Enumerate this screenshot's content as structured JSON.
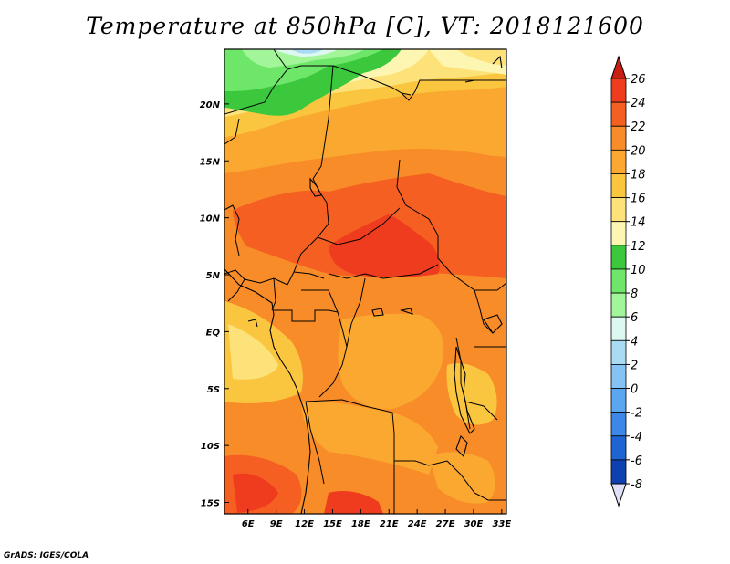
{
  "title": "Temperature at 850hPa [C], VT: 2018121600",
  "credit": "GrADS: IGES/COLA",
  "map": {
    "lon_range": [
      3.5,
      33.5
    ],
    "lat_range": [
      -16,
      24.8
    ],
    "lon_ticks": [
      6,
      9,
      12,
      15,
      18,
      21,
      24,
      27,
      30,
      33
    ],
    "lon_tick_labels": [
      "6E",
      "9E",
      "12E",
      "15E",
      "18E",
      "21E",
      "24E",
      "27E",
      "30E",
      "33E"
    ],
    "lat_ticks": [
      20,
      15,
      10,
      5,
      0,
      -5,
      -10,
      -15
    ],
    "lat_tick_labels": [
      "20N",
      "15N",
      "10N",
      "5N",
      "EQ",
      "5S",
      "10S",
      "15S"
    ],
    "variable": "Temperature at 850hPa",
    "units": "C"
  },
  "colorbar": {
    "levels": [
      "26",
      "24",
      "22",
      "20",
      "18",
      "16",
      "14",
      "12",
      "10",
      "8",
      "6",
      "4",
      "2",
      "0",
      "-2",
      "-4",
      "-6",
      "-8"
    ],
    "colors": [
      "#f03c1e",
      "#f56022",
      "#f78c28",
      "#fba830",
      "#fbc63f",
      "#fde27a",
      "#fdf6b2",
      "#3cc83c",
      "#6ee66a",
      "#a3f59a",
      "#dcf8f0",
      "#a9dbf5",
      "#86c3f5",
      "#5ba6f0",
      "#3c87e8",
      "#1e64d2",
      "#0f40b0",
      "#0a1c7a",
      "#e0e0f8"
    ],
    "top_arrow_color": "#c81e14",
    "bottom_arrow_color": "#e0e0f8"
  }
}
